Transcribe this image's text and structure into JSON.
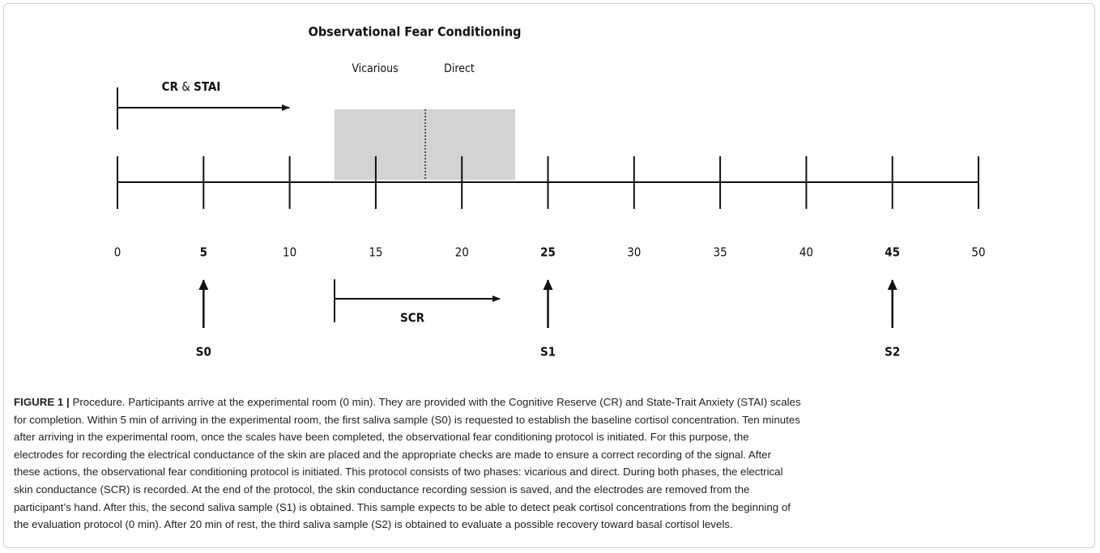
{
  "figure": {
    "title": "Observational Fear Conditioning",
    "phases": [
      "Vicarious",
      "Direct"
    ],
    "cr_stai": {
      "cr": "CR",
      "and": "&",
      "stai": "STAI"
    },
    "scr": "SCR",
    "ticks": [
      "0",
      "5",
      "10",
      "15",
      "20",
      "25",
      "30",
      "35",
      "40",
      "45",
      "50"
    ],
    "samples": [
      "S0",
      "S1",
      "S2"
    ]
  },
  "caption": {
    "label": "FIGURE 1 |",
    "lines": [
      "Procedure. Participants arrive at the experimental room (0 min). They are provided with the Cognitive Reserve (CR) and State-Trait Anxiety (STAI) scales",
      "for completion. Within 5 min of arriving in the experimental room, the first saliva sample (S0) is requested to establish the baseline cortisol concentration. Ten minutes",
      "after arriving in the experimental room, once the scales have been completed, the observational fear conditioning protocol is initiated. For this purpose, the",
      "electrodes for recording the electrical conductance of the skin are placed and the appropriate checks are made to ensure a correct recording of the signal. After",
      "these actions, the observational fear conditioning protocol is initiated. This protocol consists of two phases: vicarious and direct. During both phases, the electrical",
      "skin conductance (SCR) is recorded. At the end of the protocol, the skin conductance recording session is saved, and the electrodes are removed from the",
      "participant’s hand. After this, the second saliva sample (S1) is obtained. This sample expects to be able to detect peak cortisol concentrations from the beginning of",
      "the evaluation protocol (0 min). After 20 min of rest, the third saliva sample (S2) is obtained to evaluate a possible recovery toward basal cortisol levels."
    ]
  }
}
